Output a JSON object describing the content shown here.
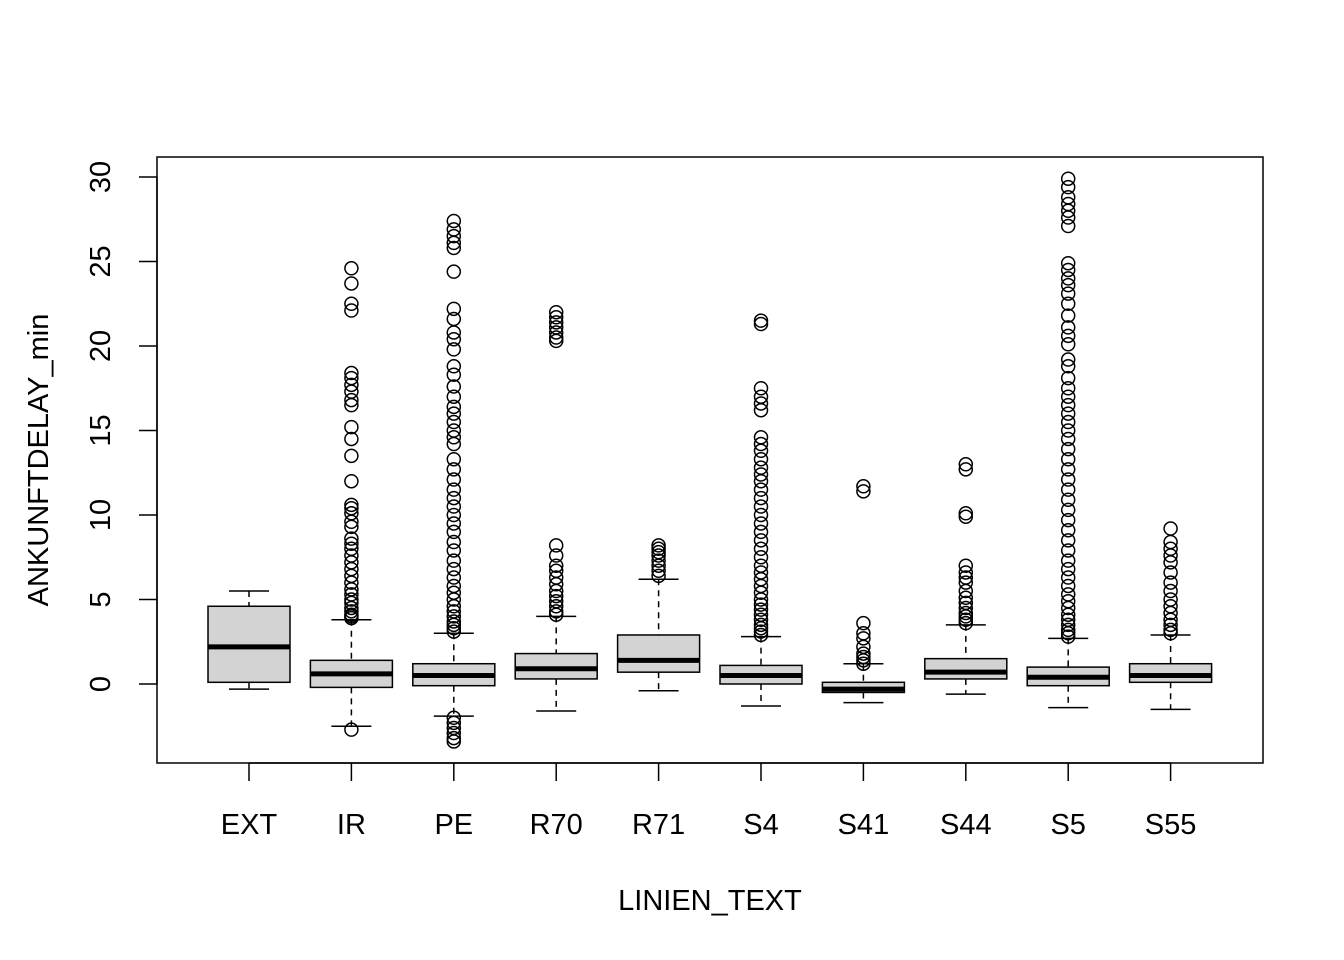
{
  "chart_data": {
    "type": "box",
    "xlabel": "LINIEN_TEXT",
    "ylabel": "ANKUNFTDELAY_min",
    "ylim": [
      -4.7,
      31.2
    ],
    "yticks": [
      0,
      5,
      10,
      15,
      20,
      25,
      30
    ],
    "ytick_labels": [
      "0",
      "5",
      "10",
      "15",
      "20",
      "25",
      "30"
    ],
    "grid": false,
    "box_fill": "#d3d3d3",
    "categories": [
      "EXT",
      "IR",
      "PE",
      "R70",
      "R71",
      "S4",
      "S41",
      "S44",
      "S5",
      "S55"
    ],
    "boxes": [
      {
        "category": "EXT",
        "whisker_low": -0.3,
        "q1": 0.1,
        "median": 2.2,
        "q3": 4.6,
        "whisker_high": 5.5,
        "outliers": []
      },
      {
        "category": "IR",
        "whisker_low": -2.5,
        "q1": -0.2,
        "median": 0.6,
        "q3": 1.4,
        "whisker_high": 3.8,
        "outliers": [
          -2.7,
          3.9,
          4.0,
          4.1,
          4.3,
          4.5,
          4.8,
          5.0,
          5.3,
          5.6,
          6.0,
          6.4,
          6.8,
          7.2,
          7.6,
          8.0,
          8.3,
          8.6,
          9.3,
          9.6,
          10.1,
          10.4,
          10.6,
          12.0,
          13.5,
          14.5,
          15.2,
          16.5,
          16.8,
          17.3,
          17.7,
          18.1,
          18.4,
          22.1,
          22.5,
          23.7,
          24.6
        ]
      },
      {
        "category": "PE",
        "whisker_low": -1.9,
        "q1": -0.1,
        "median": 0.5,
        "q3": 1.2,
        "whisker_high": 3.0,
        "outliers": [
          -2.0,
          -2.3,
          -2.6,
          -2.9,
          -3.2,
          -3.4,
          3.1,
          3.3,
          3.5,
          3.7,
          4.0,
          4.3,
          4.6,
          5.0,
          5.4,
          5.8,
          6.3,
          6.8,
          7.3,
          7.9,
          8.4,
          9.0,
          9.5,
          10.0,
          10.5,
          11.0,
          11.5,
          12.1,
          12.7,
          13.3,
          14.2,
          14.6,
          15.0,
          15.5,
          16.0,
          16.4,
          17.0,
          17.6,
          18.3,
          18.8,
          19.8,
          20.4,
          20.8,
          21.6,
          22.2,
          24.4,
          25.8,
          26.1,
          26.5,
          26.9,
          27.4
        ]
      },
      {
        "category": "R70",
        "whisker_low": -1.6,
        "q1": 0.3,
        "median": 0.9,
        "q3": 1.8,
        "whisker_high": 4.0,
        "outliers": [
          4.1,
          4.3,
          4.6,
          4.9,
          5.2,
          5.5,
          5.9,
          6.3,
          6.7,
          7.0,
          7.6,
          8.2,
          20.3,
          20.5,
          20.8,
          21.1,
          21.4,
          21.7,
          22.0
        ]
      },
      {
        "category": "R71",
        "whisker_low": -0.4,
        "q1": 0.7,
        "median": 1.4,
        "q3": 2.9,
        "whisker_high": 6.2,
        "outliers": [
          6.4,
          6.7,
          7.0,
          7.3,
          7.6,
          7.8,
          8.0,
          8.2
        ]
      },
      {
        "category": "S4",
        "whisker_low": -1.3,
        "q1": 0.0,
        "median": 0.5,
        "q3": 1.1,
        "whisker_high": 2.8,
        "outliers": [
          2.9,
          3.1,
          3.3,
          3.5,
          3.8,
          4.1,
          4.4,
          4.7,
          5.0,
          5.4,
          5.8,
          6.2,
          6.6,
          7.0,
          7.5,
          8.0,
          8.5,
          9.0,
          9.5,
          10.0,
          10.5,
          11.0,
          11.5,
          12.0,
          12.4,
          12.8,
          13.3,
          13.8,
          14.2,
          14.6,
          16.2,
          16.6,
          17.0,
          17.5,
          21.3,
          21.5
        ]
      },
      {
        "category": "S41",
        "whisker_low": -1.1,
        "q1": -0.5,
        "median": -0.3,
        "q3": 0.1,
        "whisker_high": 1.2,
        "outliers": [
          1.2,
          1.4,
          1.6,
          1.8,
          2.2,
          2.7,
          3.0,
          3.6,
          11.4,
          11.7
        ]
      },
      {
        "category": "S44",
        "whisker_low": -0.6,
        "q1": 0.3,
        "median": 0.7,
        "q3": 1.5,
        "whisker_high": 3.5,
        "outliers": [
          3.6,
          3.8,
          4.0,
          4.2,
          4.5,
          4.8,
          5.1,
          5.5,
          6.0,
          6.3,
          6.6,
          7.0,
          9.9,
          10.1,
          12.7,
          13.0
        ]
      },
      {
        "category": "S5",
        "whisker_low": -1.4,
        "q1": -0.1,
        "median": 0.4,
        "q3": 1.0,
        "whisker_high": 2.7,
        "outliers": [
          2.8,
          3.0,
          3.2,
          3.5,
          3.8,
          4.1,
          4.5,
          4.9,
          5.3,
          5.8,
          6.3,
          6.8,
          7.3,
          7.9,
          8.5,
          9.1,
          9.7,
          10.3,
          10.9,
          11.5,
          12.1,
          12.7,
          13.3,
          13.9,
          14.5,
          15.0,
          15.5,
          16.0,
          16.5,
          17.0,
          17.5,
          18.1,
          18.8,
          19.2,
          20.1,
          20.6,
          21.1,
          21.8,
          22.5,
          23.1,
          23.6,
          24.0,
          24.5,
          24.9,
          27.1,
          27.6,
          28.0,
          28.4,
          28.8,
          29.4,
          29.9
        ]
      },
      {
        "category": "S55",
        "whisker_low": -1.5,
        "q1": 0.1,
        "median": 0.5,
        "q3": 1.2,
        "whisker_high": 2.9,
        "outliers": [
          3.0,
          3.2,
          3.5,
          3.8,
          4.2,
          4.6,
          5.0,
          5.5,
          6.0,
          6.6,
          7.2,
          7.6,
          8.0,
          8.4,
          9.2
        ]
      }
    ]
  }
}
